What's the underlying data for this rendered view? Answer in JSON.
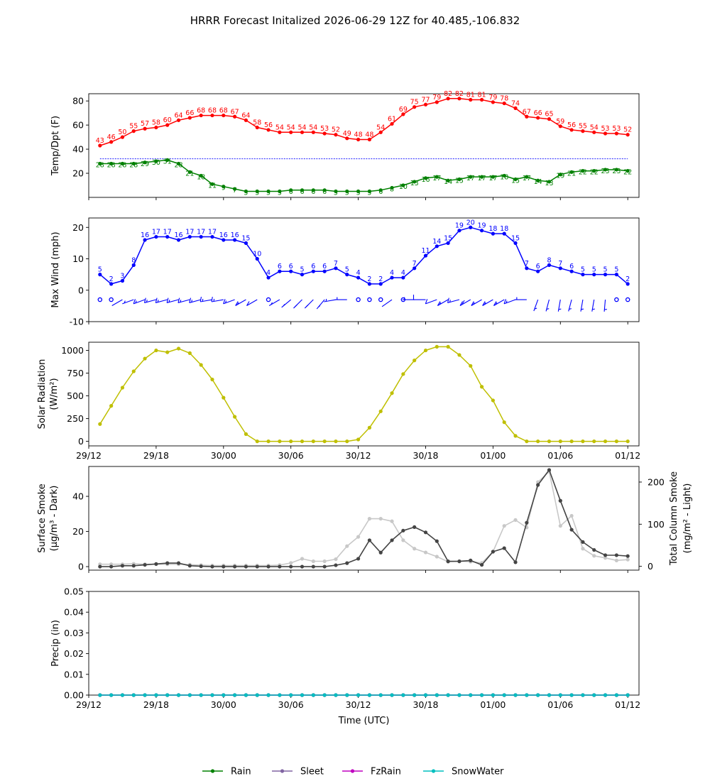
{
  "figure": {
    "title": "HRRR Forecast Initalized 2026-06-29 12Z for 40.485,-106.832"
  },
  "time": {
    "xlabel": "Time (UTC)",
    "tick_labels": [
      "29/12",
      "29/18",
      "30/00",
      "30/06",
      "30/12",
      "30/18",
      "01/00",
      "01/06",
      "01/12"
    ],
    "tick_hours": [
      0,
      6,
      12,
      18,
      24,
      30,
      36,
      42,
      48
    ],
    "xlim_hours": [
      0,
      49
    ],
    "point_hours": [
      1,
      2,
      3,
      4,
      5,
      6,
      7,
      8,
      9,
      10,
      11,
      12,
      13,
      14,
      15,
      16,
      17,
      18,
      19,
      20,
      21,
      22,
      23,
      24,
      25,
      26,
      27,
      28,
      29,
      30,
      31,
      32,
      33,
      34,
      35,
      36,
      37,
      38,
      39,
      40,
      41,
      42,
      43,
      44,
      45,
      46,
      47,
      48
    ]
  },
  "chart_data": [
    {
      "type": "line",
      "ylabel": "Temp/Dpt (F)",
      "ylim": [
        0,
        86
      ],
      "yticks": [
        20,
        40,
        60,
        80
      ],
      "reference_line": 32,
      "series": [
        {
          "key": "temp",
          "color": "#ff0000",
          "values": [
            43,
            46,
            50,
            55,
            57,
            58,
            60,
            64,
            66,
            68,
            68,
            68,
            67,
            64,
            58,
            56,
            54,
            54,
            54,
            54,
            53,
            52,
            49,
            48,
            48,
            54,
            61,
            69,
            75,
            77,
            79,
            82,
            82,
            81,
            81,
            79,
            78,
            74,
            67,
            66,
            65,
            59,
            56,
            55,
            54,
            53,
            53,
            52
          ]
        },
        {
          "key": "dewpoint",
          "color": "#008000",
          "values": [
            28,
            28,
            28,
            28,
            29,
            30,
            31,
            28,
            21,
            18,
            11,
            9,
            7,
            5,
            5,
            5,
            5,
            6,
            6,
            6,
            6,
            5,
            5,
            5,
            5,
            6,
            8,
            10,
            13,
            16,
            17,
            14,
            15,
            17,
            17,
            17,
            18,
            15,
            17,
            14,
            13,
            19,
            21,
            22,
            22,
            23,
            23,
            22
          ]
        }
      ]
    },
    {
      "type": "line",
      "ylabel": "Max Wind (mph)",
      "ylim": [
        -10,
        23
      ],
      "yticks": [
        -10,
        0,
        10,
        20
      ],
      "series": [
        {
          "key": "wind",
          "color": "#0000ff",
          "values": [
            5,
            2,
            3,
            8,
            16,
            17,
            17,
            16,
            17,
            17,
            17,
            16,
            16,
            15,
            10,
            4,
            6,
            6,
            5,
            6,
            6,
            7,
            5,
            4,
            2,
            2,
            4,
            4,
            7,
            11,
            14,
            15,
            19,
            20,
            19,
            18,
            18,
            15,
            7,
            6,
            8,
            7,
            6,
            5,
            5,
            5,
            5,
            2
          ]
        }
      ],
      "barbs": {
        "y": -3,
        "calm_hours": [
          1,
          2,
          16,
          24,
          25,
          26,
          28,
          47,
          48
        ],
        "directions_deg": [
          270,
          270,
          300,
          290,
          290,
          285,
          285,
          285,
          285,
          285,
          280,
          280,
          290,
          300,
          300,
          270,
          300,
          310,
          315,
          315,
          320,
          280,
          270,
          270,
          270,
          310,
          305,
          275,
          270,
          270,
          290,
          300,
          285,
          300,
          300,
          300,
          300,
          290,
          270,
          340,
          345,
          350,
          345,
          350,
          350,
          355,
          270,
          270
        ]
      }
    },
    {
      "type": "line",
      "ylabel": "Solar Radiation",
      "ylabel_units": "(W/m²)",
      "ylim": [
        -50,
        1090
      ],
      "yticks": [
        0,
        250,
        500,
        750,
        1000
      ],
      "series": [
        {
          "key": "solar",
          "color": "#bfbf00",
          "values": [
            190,
            390,
            590,
            770,
            910,
            1000,
            980,
            1020,
            970,
            840,
            680,
            480,
            270,
            80,
            0,
            0,
            0,
            0,
            0,
            0,
            0,
            0,
            0,
            20,
            150,
            330,
            530,
            740,
            890,
            1000,
            1040,
            1040,
            950,
            830,
            600,
            450,
            210,
            60,
            0,
            0,
            0,
            0,
            0,
            0,
            0,
            0,
            0,
            0
          ]
        }
      ]
    },
    {
      "type": "line",
      "ylabel": "Surface Smoke",
      "ylabel_units": "(µg/m³ - Dark)",
      "ylabel_right": "Total Column Smoke",
      "ylabel_right_units": "(mg/m² - Light)",
      "ylim": [
        -2,
        57
      ],
      "yticks": [
        0,
        20,
        40
      ],
      "ylim_right": [
        -9,
        237
      ],
      "yticks_right": [
        0,
        100,
        200
      ],
      "series": [
        {
          "key": "surface_smoke",
          "color": "#444444",
          "axis": "left",
          "values": [
            0,
            0,
            0.5,
            0.5,
            1,
            1.5,
            2,
            2,
            0.5,
            0.2,
            0,
            0,
            0,
            0,
            0,
            0,
            0,
            0,
            0,
            0,
            0,
            0.8,
            2,
            4.5,
            15,
            8,
            15,
            20.5,
            22.5,
            19.5,
            14.5,
            3,
            3,
            3.5,
            1,
            8.5,
            10.5,
            2.5,
            25,
            46.5,
            55,
            37.5,
            21,
            14,
            9.5,
            6.5,
            6.5,
            6
          ]
        },
        {
          "key": "column_smoke",
          "color": "#c8c8c8",
          "axis": "right",
          "values": [
            5,
            5,
            5,
            6,
            5,
            5,
            5,
            5,
            4,
            3,
            2,
            2,
            2,
            2,
            2,
            2,
            3,
            8,
            18,
            12,
            12,
            17,
            48,
            70,
            113,
            113,
            107,
            62,
            42,
            33,
            23,
            11,
            12,
            11,
            8,
            35,
            96,
            110,
            92,
            200,
            225,
            96,
            120,
            42,
            25,
            20,
            14,
            16
          ]
        }
      ]
    },
    {
      "type": "line",
      "ylabel": "Precip (in)",
      "ylim": [
        0,
        0.05
      ],
      "yticks": [
        "0.00",
        "0.01",
        "0.02",
        "0.03",
        "0.04",
        "0.05"
      ],
      "series": [
        {
          "key": "rain",
          "name": "Rain",
          "color": "#008000",
          "values": [
            0,
            0,
            0,
            0,
            0,
            0,
            0,
            0,
            0,
            0,
            0,
            0,
            0,
            0,
            0,
            0,
            0,
            0,
            0,
            0,
            0,
            0,
            0,
            0,
            0,
            0,
            0,
            0,
            0,
            0,
            0,
            0,
            0,
            0,
            0,
            0,
            0,
            0,
            0,
            0,
            0,
            0,
            0,
            0,
            0,
            0,
            0,
            0
          ]
        },
        {
          "key": "sleet",
          "name": "Sleet",
          "color": "#8064a2",
          "values": [
            0,
            0,
            0,
            0,
            0,
            0,
            0,
            0,
            0,
            0,
            0,
            0,
            0,
            0,
            0,
            0,
            0,
            0,
            0,
            0,
            0,
            0,
            0,
            0,
            0,
            0,
            0,
            0,
            0,
            0,
            0,
            0,
            0,
            0,
            0,
            0,
            0,
            0,
            0,
            0,
            0,
            0,
            0,
            0,
            0,
            0,
            0,
            0
          ]
        },
        {
          "key": "fzrain",
          "name": "FzRain",
          "color": "#c000c0",
          "values": [
            0,
            0,
            0,
            0,
            0,
            0,
            0,
            0,
            0,
            0,
            0,
            0,
            0,
            0,
            0,
            0,
            0,
            0,
            0,
            0,
            0,
            0,
            0,
            0,
            0,
            0,
            0,
            0,
            0,
            0,
            0,
            0,
            0,
            0,
            0,
            0,
            0,
            0,
            0,
            0,
            0,
            0,
            0,
            0,
            0,
            0,
            0,
            0
          ]
        },
        {
          "key": "snowwater",
          "name": "SnowWater",
          "color": "#00bfbf",
          "values": [
            0,
            0,
            0,
            0,
            0,
            0,
            0,
            0,
            0,
            0,
            0,
            0,
            0,
            0,
            0,
            0,
            0,
            0,
            0,
            0,
            0,
            0,
            0,
            0,
            0,
            0,
            0,
            0,
            0,
            0,
            0,
            0,
            0,
            0,
            0,
            0,
            0,
            0,
            0,
            0,
            0,
            0,
            0,
            0,
            0,
            0,
            0,
            0
          ]
        }
      ]
    }
  ]
}
